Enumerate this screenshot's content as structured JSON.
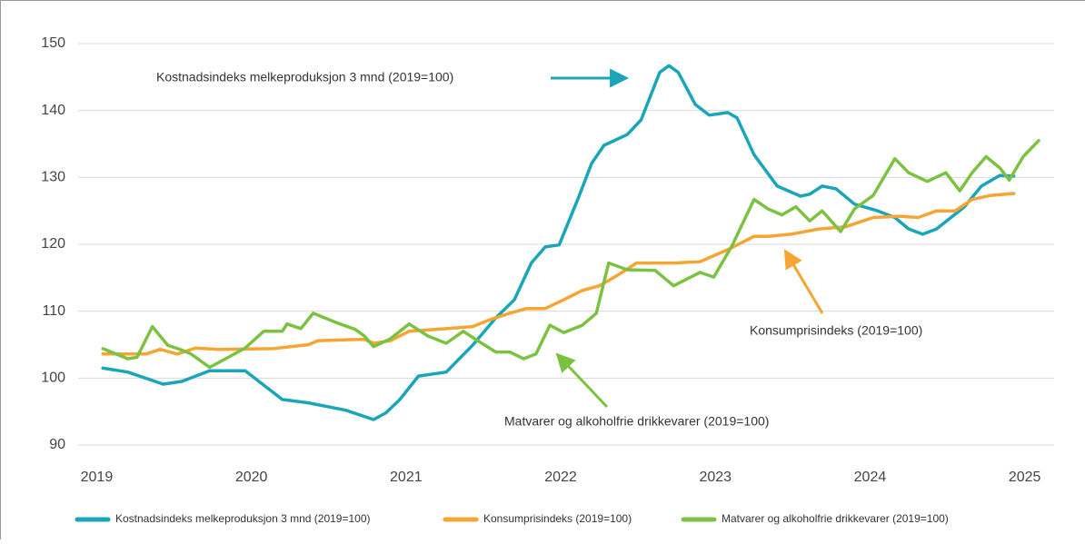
{
  "chart_data": {
    "type": "line",
    "annotations": [
      "Kostnadsindeks melkeproduksjon 3 mnd (2019=100)",
      "Konsumprisindeks (2019=100)",
      "Matvarer og alkoholfrie drikkevarer (2019=100)"
    ],
    "xlim": [
      2018.88,
      2025.19
    ],
    "xticks": [
      2019,
      2020,
      2021,
      2022,
      2023,
      2024,
      2025
    ],
    "ylim": [
      90,
      150
    ],
    "yticks": [
      90,
      100,
      110,
      120,
      130,
      140,
      150
    ],
    "grid": true,
    "legend": "bottom",
    "series": [
      {
        "name": "Kostnadsindeks melkeproduksjon 3 mnd (2019=100)",
        "color": "#1aa5b8",
        "x": [
          2019.04,
          2019.2,
          2019.43,
          2019.55,
          2019.73,
          2019.96,
          2020.2,
          2020.37,
          2020.61,
          2020.79,
          2020.87,
          2020.96,
          2021.08,
          2021.26,
          2021.43,
          2021.58,
          2021.7,
          2021.81,
          2021.9,
          2021.99,
          2022.11,
          2022.2,
          2022.28,
          2022.43,
          2022.52,
          2022.64,
          2022.7,
          2022.76,
          2022.87,
          2022.96,
          2023.08,
          2023.14,
          2023.25,
          2023.4,
          2023.55,
          2023.61,
          2023.69,
          2023.78,
          2023.9,
          2024.05,
          2024.16,
          2024.25,
          2024.34,
          2024.43,
          2024.61,
          2024.72,
          2024.84,
          2024.93
        ],
        "values": [
          101.5,
          100.9,
          99.1,
          99.5,
          101.1,
          101.1,
          96.8,
          96.3,
          95.2,
          93.8,
          94.8,
          96.8,
          100.3,
          100.9,
          104.9,
          109,
          111.7,
          117.2,
          119.6,
          119.9,
          126.7,
          132.1,
          134.8,
          136.4,
          138.6,
          145.7,
          146.7,
          145.7,
          140.9,
          139.3,
          139.7,
          138.9,
          133.4,
          128.7,
          127.2,
          127.5,
          128.7,
          128.3,
          126,
          125,
          124,
          122.3,
          121.5,
          122.3,
          125.6,
          128.7,
          130.3,
          130.2
        ]
      },
      {
        "name": "Konsumprisindeks (2019=100)",
        "color": "#f5a533",
        "x": [
          2019.04,
          2019.32,
          2019.41,
          2019.52,
          2019.64,
          2019.79,
          2020.14,
          2020.37,
          2020.43,
          2020.73,
          2020.79,
          2020.9,
          2021.02,
          2021.2,
          2021.43,
          2021.55,
          2021.67,
          2021.78,
          2021.9,
          2022.02,
          2022.14,
          2022.25,
          2022.37,
          2022.49,
          2022.73,
          2022.9,
          2023.08,
          2023.25,
          2023.34,
          2023.49,
          2023.67,
          2023.84,
          2024.02,
          2024.19,
          2024.31,
          2024.43,
          2024.55,
          2024.66,
          2024.78,
          2024.93
        ],
        "values": [
          103.6,
          103.6,
          104.3,
          103.6,
          104.5,
          104.3,
          104.4,
          105,
          105.6,
          105.8,
          105.2,
          105.6,
          107,
          107.3,
          107.7,
          108.8,
          109.7,
          110.4,
          110.4,
          111.7,
          113.1,
          113.8,
          115.4,
          117.2,
          117.2,
          117.4,
          119.2,
          121.2,
          121.2,
          121.5,
          122.3,
          122.6,
          124,
          124.2,
          124,
          125,
          125,
          126.7,
          127.3,
          127.6
        ]
      },
      {
        "name": "Matvarer og alkoholfrie drikkevarer (2019=100)",
        "color": "#7cc242",
        "x": [
          2019.04,
          2019.2,
          2019.26,
          2019.36,
          2019.46,
          2019.55,
          2019.61,
          2019.73,
          2019.85,
          2019.96,
          2020.08,
          2020.2,
          2020.23,
          2020.32,
          2020.4,
          2020.55,
          2020.67,
          2020.73,
          2020.79,
          2020.9,
          2021.02,
          2021.14,
          2021.26,
          2021.37,
          2021.49,
          2021.58,
          2021.67,
          2021.76,
          2021.84,
          2021.93,
          2022.02,
          2022.14,
          2022.23,
          2022.31,
          2022.43,
          2022.61,
          2022.73,
          2022.9,
          2022.99,
          2023.11,
          2023.25,
          2023.34,
          2023.43,
          2023.52,
          2023.61,
          2023.69,
          2023.81,
          2023.9,
          2024.02,
          2024.16,
          2024.25,
          2024.37,
          2024.49,
          2024.58,
          2024.66,
          2024.75,
          2024.84,
          2024.9,
          2024.99,
          2025.09
        ],
        "values": [
          104.4,
          102.9,
          103.1,
          107.7,
          104.9,
          104.2,
          103.6,
          101.6,
          103.1,
          104.5,
          107,
          107,
          108.1,
          107.4,
          109.7,
          108.3,
          107.3,
          106.3,
          104.7,
          105.9,
          108.1,
          106.3,
          105.2,
          107,
          105.2,
          103.9,
          103.9,
          102.9,
          103.6,
          107.9,
          106.8,
          107.9,
          109.7,
          117.2,
          116.2,
          116.1,
          113.8,
          115.8,
          115.1,
          119.9,
          126.7,
          125.3,
          124.4,
          125.6,
          123.5,
          125,
          121.9,
          125.3,
          127.3,
          132.8,
          130.7,
          129.4,
          130.7,
          128,
          130.7,
          133.1,
          131.4,
          129.6,
          133.1,
          135.5
        ]
      }
    ]
  }
}
